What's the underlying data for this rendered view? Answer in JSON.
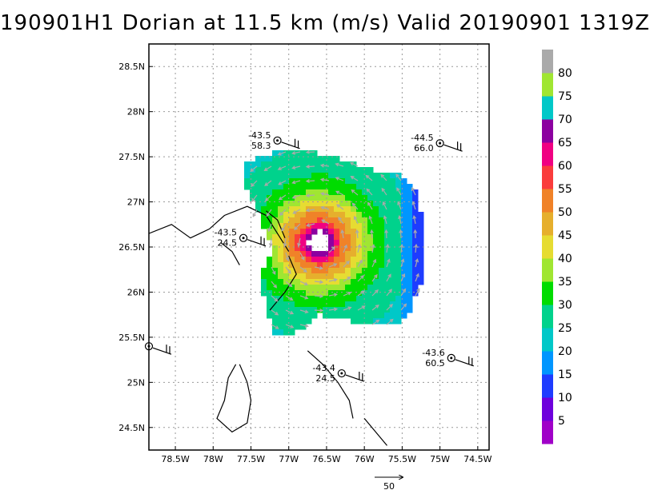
{
  "chart_data": {
    "type": "heatmap",
    "title": "190901H1 Dorian at 11.5 km (m/s) Valid 20190901 1319Z",
    "xlim": [
      -78.85,
      -74.35
    ],
    "ylim": [
      24.25,
      28.75
    ],
    "x_ticks": [
      {
        "value": -78.5,
        "label": "78.5W"
      },
      {
        "value": -78.0,
        "label": "78W"
      },
      {
        "value": -77.5,
        "label": "77.5W"
      },
      {
        "value": -77.0,
        "label": "77W"
      },
      {
        "value": -76.5,
        "label": "76.5W"
      },
      {
        "value": -76.0,
        "label": "76W"
      },
      {
        "value": -75.5,
        "label": "75.5W"
      },
      {
        "value": -75.0,
        "label": "75W"
      },
      {
        "value": -74.5,
        "label": "74.5W"
      }
    ],
    "y_ticks": [
      {
        "value": 24.5,
        "label": "24.5N"
      },
      {
        "value": 25.0,
        "label": "25N"
      },
      {
        "value": 25.5,
        "label": "25.5N"
      },
      {
        "value": 26.0,
        "label": "26N"
      },
      {
        "value": 26.5,
        "label": "26.5N"
      },
      {
        "value": 27.0,
        "label": "27N"
      },
      {
        "value": 27.5,
        "label": "27.5N"
      },
      {
        "value": 28.0,
        "label": "28N"
      },
      {
        "value": 28.5,
        "label": "28.5N"
      }
    ],
    "grid": true,
    "storm_center": [
      -76.6,
      26.55
    ],
    "colorbar": {
      "levels": [
        0,
        5,
        10,
        15,
        20,
        25,
        30,
        35,
        40,
        45,
        50,
        55,
        60,
        65,
        70,
        75,
        80,
        85
      ],
      "labels": [
        "5",
        "10",
        "15",
        "20",
        "25",
        "30",
        "35",
        "40",
        "45",
        "50",
        "55",
        "60",
        "65",
        "70",
        "75",
        "80"
      ],
      "colors": [
        "#a000c8",
        "#6e00dc",
        "#1e3cff",
        "#0096ff",
        "#00c8c8",
        "#00d28c",
        "#00dc00",
        "#a0e632",
        "#e6dc32",
        "#e6af2d",
        "#f08228",
        "#fa3c3c",
        "#f00082",
        "#8c00a0",
        "#00c8c8",
        "#a0e632",
        "#aaaaaa"
      ]
    },
    "observations": [
      {
        "lon": -77.15,
        "lat": 27.68,
        "label_top": "-43.5",
        "label_bottom": "58.3",
        "label_side": "left"
      },
      {
        "lon": -75.0,
        "lat": 27.65,
        "label_top": "-44.5",
        "label_bottom": "66.0",
        "label_side": "left"
      },
      {
        "lon": -77.6,
        "lat": 26.6,
        "label_top": "-43.5",
        "label_bottom": "24.5",
        "label_side": "left"
      },
      {
        "lon": -78.85,
        "lat": 25.4,
        "label_top": "",
        "label_bottom": "",
        "label_side": "left"
      },
      {
        "lon": -76.3,
        "lat": 25.1,
        "label_top": "-43.4",
        "label_bottom": "24.5",
        "label_side": "left"
      },
      {
        "lon": -74.85,
        "lat": 25.27,
        "label_top": "-43.6",
        "label_bottom": "60.5",
        "label_side": "left"
      }
    ],
    "reference_vector": {
      "label": "50"
    }
  }
}
